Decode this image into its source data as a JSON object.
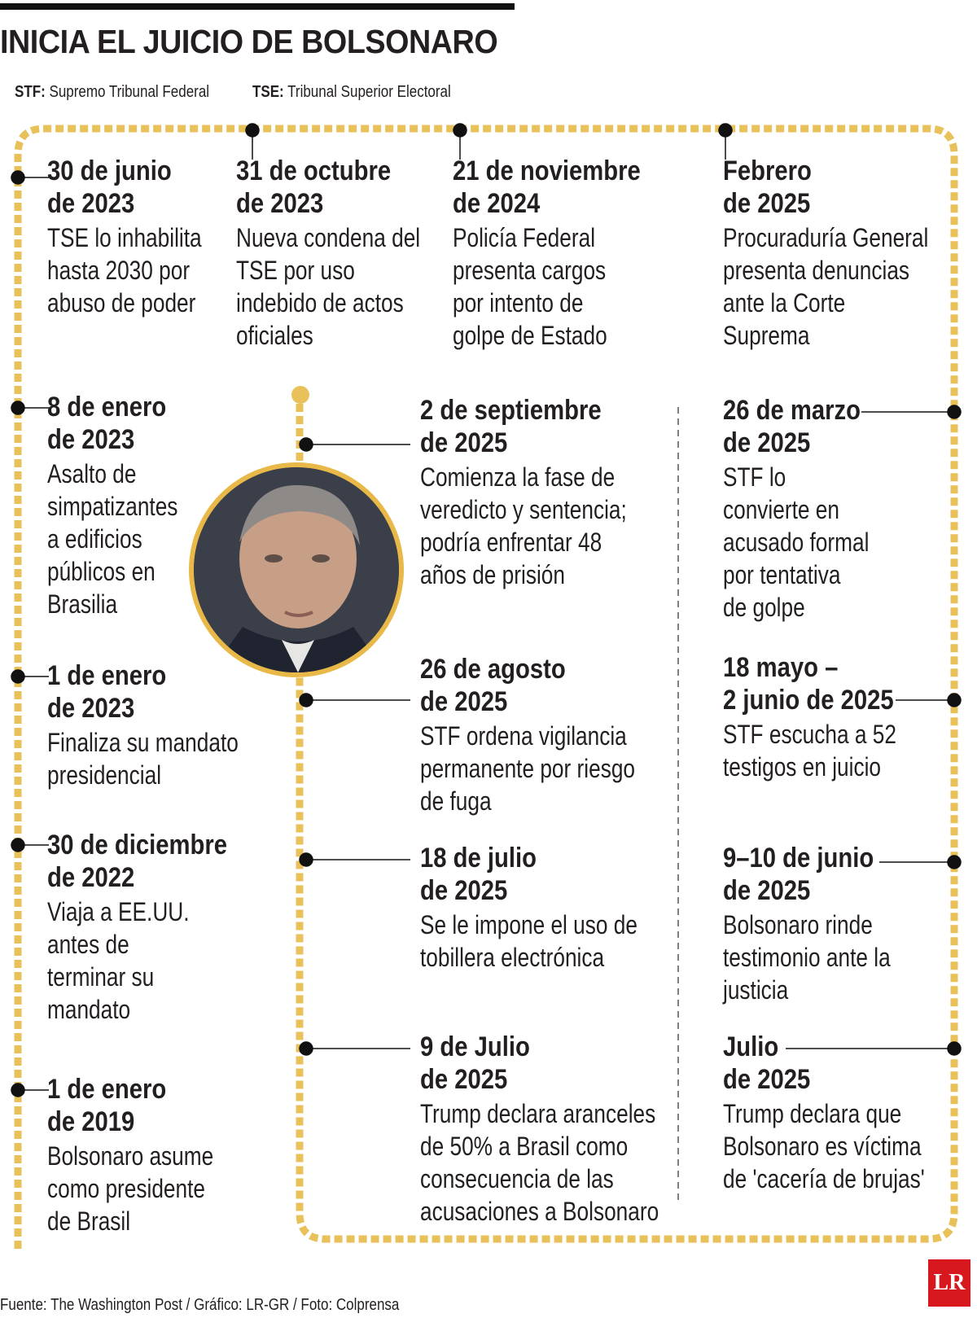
{
  "title": "INICIA EL JUICIO DE BOLSONARO",
  "legend": [
    {
      "abbr": "STF:",
      "text": "Supremo Tribunal Federal"
    },
    {
      "abbr": "TSE:",
      "text": "Tribunal Superior Electoral"
    }
  ],
  "events": {
    "e1": {
      "date": [
        "30 de junio",
        "de 2023"
      ],
      "desc": [
        "TSE lo inhabilita",
        "hasta 2030 por",
        "abuso de poder"
      ]
    },
    "e2": {
      "date": [
        "31 de octubre",
        "de 2023"
      ],
      "desc": [
        "Nueva condena del",
        "TSE por uso",
        "indebido de actos",
        "oficiales"
      ]
    },
    "e3": {
      "date": [
        "21 de noviembre",
        "de 2024"
      ],
      "desc": [
        "Policía Federal",
        "presenta cargos",
        "por intento de",
        "golpe de Estado"
      ]
    },
    "e4": {
      "date": [
        "Febrero",
        "de 2025"
      ],
      "desc": [
        "Procuraduría General",
        "presenta denuncias",
        "ante la Corte",
        "Suprema"
      ]
    },
    "e5": {
      "date": [
        "8 de enero",
        "de 2023"
      ],
      "desc": [
        "Asalto de",
        "simpatizantes",
        "a edificios",
        "públicos en",
        "Brasilia"
      ]
    },
    "e6": {
      "date": [
        "2 de septiembre",
        "de 2025"
      ],
      "desc": [
        "Comienza la fase de",
        "veredicto y sentencia;",
        "podría enfrentar  48",
        "años de prisión"
      ]
    },
    "e7": {
      "date": [
        "26 de marzo",
        "de 2025"
      ],
      "desc": [
        "STF lo",
        "convierte en",
        "acusado formal",
        "por tentativa",
        "de golpe"
      ]
    },
    "e8": {
      "date": [
        "1 de enero",
        "de 2023"
      ],
      "desc": [
        "Finaliza su mandato",
        "presidencial"
      ]
    },
    "e9": {
      "date": [
        "26 de agosto",
        "de 2025"
      ],
      "desc": [
        "STF ordena vigilancia",
        "permanente por riesgo",
        "de fuga"
      ]
    },
    "e10": {
      "date": [
        "18 mayo –",
        "2 junio de 2025"
      ],
      "desc": [
        "STF escucha a 52",
        "testigos en juicio"
      ]
    },
    "e11": {
      "date": [
        "30 de diciembre",
        "de 2022"
      ],
      "desc": [
        "Viaja a EE.UU.",
        "antes de",
        "terminar su",
        "mandato"
      ]
    },
    "e12": {
      "date": [
        "18 de julio",
        "de 2025"
      ],
      "desc": [
        "Se le impone el uso de",
        "tobillera electrónica"
      ]
    },
    "e13": {
      "date": [
        "9–10 de junio",
        "de 2025"
      ],
      "desc": [
        "Bolsonaro rinde",
        "testimonio ante la",
        "justicia"
      ]
    },
    "e14": {
      "date": [
        "1 de enero",
        "de 2019"
      ],
      "desc": [
        "Bolsonaro asume",
        "como presidente",
        "de Brasil"
      ]
    },
    "e15": {
      "date": [
        "9 de Julio",
        "de 2025"
      ],
      "desc": [
        "Trump declara aranceles",
        "de 50% a Brasil como",
        "consecuencia de las",
        "acusaciones a Bolsonaro"
      ]
    },
    "e16": {
      "date": [
        "Julio",
        "de 2025"
      ],
      "desc": [
        "Trump declara que",
        "Bolsonaro es víctima",
        "de 'cacería de brujas'"
      ]
    }
  },
  "footer": "Fuente: The Washington Post / Gráfico: LR-GR / Foto: Colprensa",
  "logo": "LR",
  "colors": {
    "timeline": "#e8c15a",
    "text": "#231f20",
    "logo": "#d7191f"
  }
}
